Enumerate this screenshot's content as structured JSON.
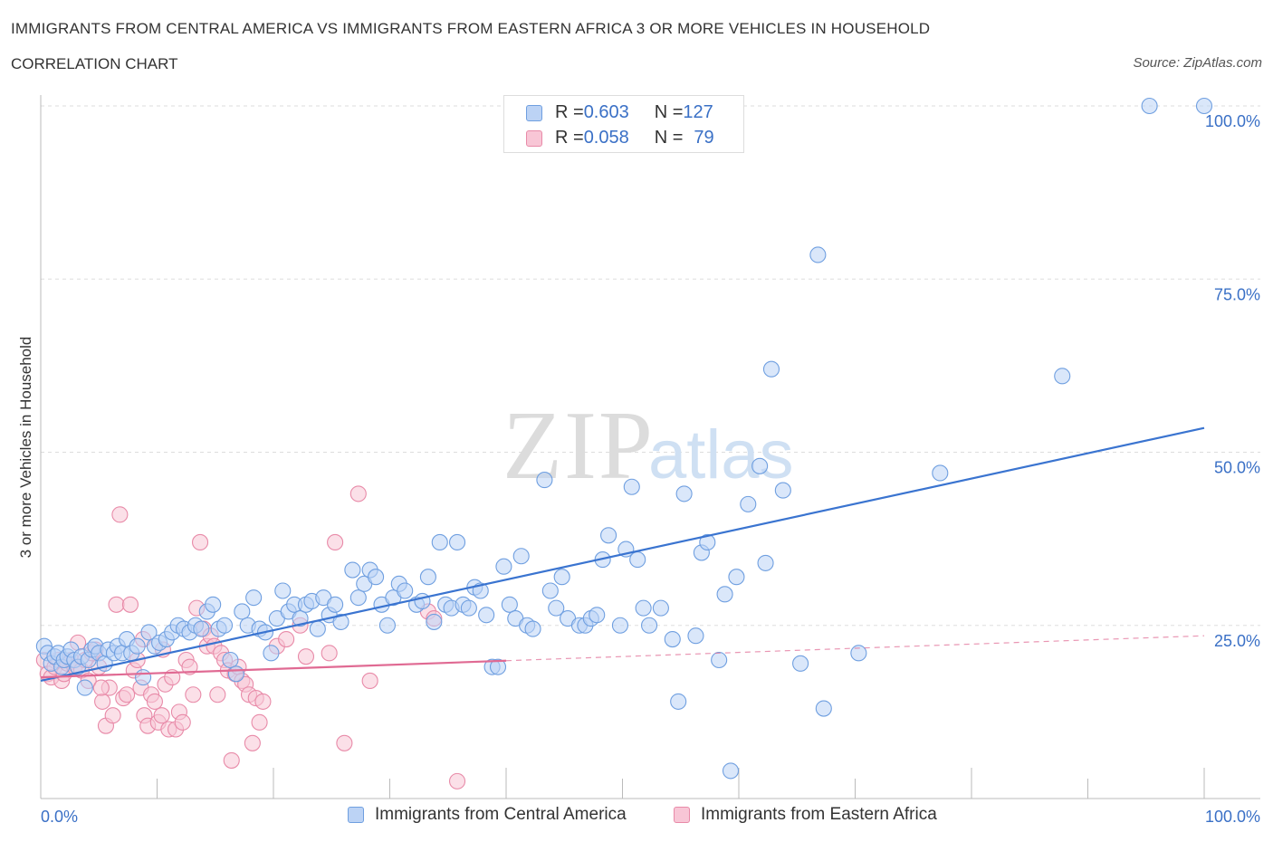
{
  "header": {
    "title": "IMMIGRANTS FROM CENTRAL AMERICA VS IMMIGRANTS FROM EASTERN AFRICA 3 OR MORE VEHICLES IN HOUSEHOLD",
    "subtitle": "CORRELATION CHART",
    "source": "Source: ZipAtlas.com"
  },
  "watermark": {
    "zip": "ZIP",
    "atlas": "atlas"
  },
  "stats": [
    {
      "r_label": "R = ",
      "r_value": "0.603",
      "n_label": "N = ",
      "n_value": "127",
      "color": "#6f9fe0",
      "fill": "#bcd3f5"
    },
    {
      "r_label": "R = ",
      "r_value": "0.058",
      "n_label": "N = ",
      "n_value": "79",
      "color": "#e88aa8",
      "fill": "#f8c6d6"
    }
  ],
  "legend": [
    {
      "label": "Immigrants from Central America",
      "color": "#6f9fe0",
      "fill": "#bcd3f5"
    },
    {
      "label": "Immigrants from Eastern Africa",
      "color": "#e88aa8",
      "fill": "#f8c6d6"
    }
  ],
  "chart_data": {
    "type": "scatter",
    "title": "IMMIGRANTS FROM CENTRAL AMERICA VS IMMIGRANTS FROM EASTERN AFRICA 3 OR MORE VEHICLES IN HOUSEHOLD",
    "xlabel": "",
    "ylabel": "3 or more Vehicles in Household",
    "xlim": [
      0,
      100
    ],
    "ylim": [
      0,
      100
    ],
    "x_tick_labels": [
      {
        "value": 0,
        "label": "0.0%"
      },
      {
        "value": 100,
        "label": "100.0%"
      }
    ],
    "y_tick_labels": [
      {
        "value": 25,
        "label": "25.0%"
      },
      {
        "value": 50,
        "label": "50.0%"
      },
      {
        "value": 75,
        "label": "75.0%"
      },
      {
        "value": 100,
        "label": "100.0%"
      }
    ],
    "grid": true,
    "legend_position": "bottom",
    "series": [
      {
        "name": "Immigrants from Central America",
        "color": "#6f9fe0",
        "fill": "#bcd3f5",
        "trend": {
          "x0": 0,
          "y0": 17.0,
          "x1": 100,
          "y1": 53.5,
          "solid_to": 100
        },
        "points": [
          [
            0.3,
            22
          ],
          [
            0.6,
            21
          ],
          [
            0.9,
            19.5
          ],
          [
            1.2,
            20.5
          ],
          [
            1.5,
            21
          ],
          [
            1.8,
            19
          ],
          [
            2.0,
            20
          ],
          [
            2.3,
            20.5
          ],
          [
            2.6,
            21.5
          ],
          [
            2.9,
            20
          ],
          [
            3.2,
            19
          ],
          [
            3.5,
            20.5
          ],
          [
            3.8,
            16
          ],
          [
            4.1,
            20
          ],
          [
            4.4,
            21.5
          ],
          [
            4.7,
            22
          ],
          [
            5.0,
            21
          ],
          [
            5.5,
            19.5
          ],
          [
            5.8,
            21.5
          ],
          [
            6.3,
            21
          ],
          [
            6.6,
            22
          ],
          [
            7.0,
            21
          ],
          [
            7.4,
            23
          ],
          [
            7.8,
            21
          ],
          [
            8.3,
            22
          ],
          [
            8.8,
            17.5
          ],
          [
            9.3,
            24
          ],
          [
            9.8,
            22
          ],
          [
            10.2,
            22.5
          ],
          [
            10.8,
            23
          ],
          [
            11.3,
            24
          ],
          [
            11.8,
            25
          ],
          [
            12.3,
            24.5
          ],
          [
            12.8,
            24
          ],
          [
            13.3,
            25
          ],
          [
            13.8,
            24.5
          ],
          [
            14.3,
            27
          ],
          [
            14.8,
            28
          ],
          [
            15.3,
            24.5
          ],
          [
            15.8,
            25
          ],
          [
            16.3,
            20
          ],
          [
            16.8,
            18
          ],
          [
            17.3,
            27
          ],
          [
            17.8,
            25
          ],
          [
            18.3,
            29
          ],
          [
            18.8,
            24.5
          ],
          [
            19.3,
            24
          ],
          [
            19.8,
            21
          ],
          [
            20.3,
            26
          ],
          [
            20.8,
            30
          ],
          [
            21.3,
            27
          ],
          [
            21.8,
            28
          ],
          [
            22.3,
            26
          ],
          [
            22.8,
            28
          ],
          [
            23.3,
            28.5
          ],
          [
            23.8,
            24.5
          ],
          [
            24.3,
            29
          ],
          [
            24.8,
            26.5
          ],
          [
            25.3,
            28
          ],
          [
            25.8,
            25.5
          ],
          [
            26.8,
            33
          ],
          [
            27.3,
            29
          ],
          [
            27.8,
            31
          ],
          [
            28.3,
            33
          ],
          [
            28.8,
            32
          ],
          [
            29.3,
            28
          ],
          [
            29.8,
            25
          ],
          [
            30.3,
            29
          ],
          [
            30.8,
            31
          ],
          [
            31.3,
            30
          ],
          [
            32.3,
            28
          ],
          [
            32.8,
            28.5
          ],
          [
            33.3,
            32
          ],
          [
            33.8,
            25.5
          ],
          [
            34.3,
            37
          ],
          [
            34.8,
            28
          ],
          [
            35.3,
            27.5
          ],
          [
            35.8,
            37
          ],
          [
            36.3,
            28
          ],
          [
            36.8,
            27.5
          ],
          [
            37.3,
            30.5
          ],
          [
            37.8,
            30
          ],
          [
            38.3,
            26.5
          ],
          [
            38.8,
            19
          ],
          [
            39.3,
            19
          ],
          [
            39.8,
            33.5
          ],
          [
            40.3,
            28
          ],
          [
            40.8,
            26
          ],
          [
            41.3,
            35
          ],
          [
            41.8,
            25
          ],
          [
            42.3,
            24.5
          ],
          [
            43.3,
            46
          ],
          [
            43.8,
            30
          ],
          [
            44.3,
            27.5
          ],
          [
            44.8,
            32
          ],
          [
            45.3,
            26
          ],
          [
            46.3,
            25
          ],
          [
            46.8,
            25
          ],
          [
            47.3,
            26
          ],
          [
            47.8,
            26.5
          ],
          [
            48.3,
            34.5
          ],
          [
            48.8,
            38
          ],
          [
            49.8,
            25
          ],
          [
            50.3,
            36
          ],
          [
            50.8,
            45
          ],
          [
            51.3,
            34.5
          ],
          [
            51.8,
            27.5
          ],
          [
            52.3,
            25
          ],
          [
            53.3,
            27.5
          ],
          [
            54.3,
            23
          ],
          [
            54.8,
            14
          ],
          [
            55.3,
            44
          ],
          [
            56.3,
            23.5
          ],
          [
            56.8,
            35.5
          ],
          [
            57.3,
            37
          ],
          [
            58.3,
            20
          ],
          [
            58.8,
            29.5
          ],
          [
            59.8,
            32
          ],
          [
            60.8,
            42.5
          ],
          [
            61.8,
            48
          ],
          [
            62.3,
            34
          ],
          [
            62.8,
            62
          ],
          [
            63.8,
            44.5
          ],
          [
            65.3,
            19.5
          ],
          [
            66.8,
            78.5
          ],
          [
            67.3,
            13
          ],
          [
            70.3,
            21
          ],
          [
            77.3,
            47
          ],
          [
            87.8,
            61
          ],
          [
            95.3,
            100
          ],
          [
            100,
            100
          ],
          [
            59.3,
            4
          ]
        ]
      },
      {
        "name": "Immigrants from Eastern Africa",
        "color": "#e88aa8",
        "fill": "#f8c6d6",
        "trend": {
          "x0": 0,
          "y0": 17.5,
          "x1": 100,
          "y1": 23.5,
          "solid_to": 40
        },
        "points": [
          [
            0.3,
            20
          ],
          [
            0.6,
            18
          ],
          [
            0.9,
            17.5
          ],
          [
            1.2,
            19
          ],
          [
            1.5,
            20
          ],
          [
            1.8,
            17
          ],
          [
            2.0,
            18
          ],
          [
            2.3,
            19.5
          ],
          [
            2.6,
            20
          ],
          [
            2.9,
            19
          ],
          [
            3.2,
            22.5
          ],
          [
            3.5,
            18.5
          ],
          [
            3.8,
            20
          ],
          [
            4.1,
            17
          ],
          [
            4.4,
            21
          ],
          [
            4.7,
            21.5
          ],
          [
            5.0,
            19
          ],
          [
            5.3,
            14
          ],
          [
            5.6,
            10.5
          ],
          [
            5.9,
            16
          ],
          [
            6.2,
            12
          ],
          [
            6.5,
            28
          ],
          [
            6.8,
            41
          ],
          [
            7.1,
            14.5
          ],
          [
            7.4,
            15
          ],
          [
            7.7,
            28
          ],
          [
            8.0,
            18.5
          ],
          [
            8.3,
            20
          ],
          [
            8.6,
            16
          ],
          [
            8.9,
            12
          ],
          [
            9.2,
            10.5
          ],
          [
            9.5,
            15
          ],
          [
            9.8,
            14
          ],
          [
            10.1,
            11
          ],
          [
            10.4,
            12
          ],
          [
            10.7,
            16.5
          ],
          [
            11.0,
            10
          ],
          [
            11.3,
            17.5
          ],
          [
            11.6,
            10
          ],
          [
            11.9,
            12.5
          ],
          [
            12.2,
            11
          ],
          [
            12.5,
            20
          ],
          [
            12.8,
            19
          ],
          [
            13.1,
            15
          ],
          [
            13.4,
            27.5
          ],
          [
            13.7,
            37
          ],
          [
            14.0,
            24.5
          ],
          [
            14.3,
            22
          ],
          [
            14.6,
            23.5
          ],
          [
            14.9,
            22
          ],
          [
            15.2,
            15
          ],
          [
            15.5,
            21
          ],
          [
            15.8,
            20
          ],
          [
            16.1,
            18.5
          ],
          [
            16.4,
            5.5
          ],
          [
            16.7,
            18
          ],
          [
            17.0,
            19
          ],
          [
            17.3,
            17
          ],
          [
            17.6,
            16.5
          ],
          [
            17.9,
            15
          ],
          [
            18.2,
            8
          ],
          [
            18.5,
            14.5
          ],
          [
            18.8,
            11
          ],
          [
            19.1,
            14
          ],
          [
            20.3,
            22
          ],
          [
            21.1,
            23
          ],
          [
            22.3,
            25
          ],
          [
            24.8,
            21
          ],
          [
            25.3,
            37
          ],
          [
            26.1,
            8
          ],
          [
            27.3,
            44
          ],
          [
            28.3,
            17
          ],
          [
            33.3,
            27
          ],
          [
            33.8,
            26
          ],
          [
            35.8,
            2.5
          ],
          [
            8.8,
            23
          ],
          [
            5.2,
            16
          ],
          [
            10.5,
            21.5
          ],
          [
            22.8,
            20.5
          ]
        ]
      }
    ]
  }
}
